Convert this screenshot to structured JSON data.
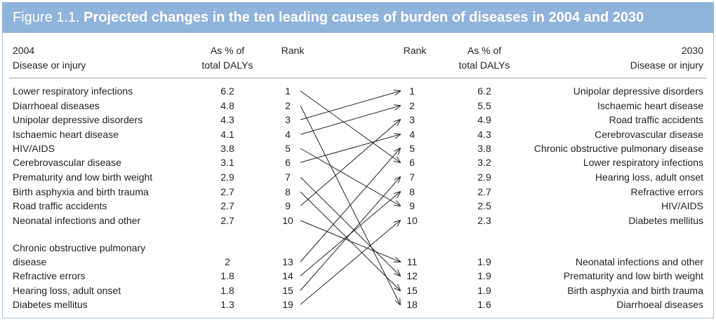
{
  "figure": {
    "label": "Figure 1.1.",
    "title": "Projected changes in the ten leading causes of burden of diseases in 2004 and 2030"
  },
  "headers": {
    "left_year": "2004",
    "left_disease": "Disease or injury",
    "left_pct_line1": "As % of",
    "left_pct_line2": "total DALYs",
    "left_rank": "Rank",
    "right_rank": "Rank",
    "right_pct_line1": "As % of",
    "right_pct_line2": "total DALYs",
    "right_year": "2030",
    "right_disease": "Disease or injury"
  },
  "left_rows": [
    {
      "name": "Lower respiratory infections",
      "pct": "6.2",
      "rank": "1"
    },
    {
      "name": "Diarrhoeal diseases",
      "pct": "4.8",
      "rank": "2"
    },
    {
      "name": "Unipolar depressive disorders",
      "pct": "4.3",
      "rank": "3"
    },
    {
      "name": "Ischaemic heart disease",
      "pct": "4.1",
      "rank": "4"
    },
    {
      "name": "HIV/AIDS",
      "pct": "3.8",
      "rank": "5"
    },
    {
      "name": "Cerebrovascular disease",
      "pct": "3.1",
      "rank": "6"
    },
    {
      "name": "Prematurity and low birth weight",
      "pct": "2.9",
      "rank": "7"
    },
    {
      "name": "Birth asphyxia and birth trauma",
      "pct": "2.7",
      "rank": "8"
    },
    {
      "name": "Road traffic accidents",
      "pct": "2.7",
      "rank": "9"
    },
    {
      "name": "Neonatal infections and other",
      "pct": "2.7",
      "rank": "10"
    }
  ],
  "left_extra_rows": [
    {
      "name_line1": "Chronic obstructive pulmonary",
      "name_line2": "disease",
      "pct": "2",
      "rank": "13"
    },
    {
      "name": "Refractive errors",
      "pct": "1.8",
      "rank": "14"
    },
    {
      "name": "Hearing loss, adult onset",
      "pct": "1.8",
      "rank": "15"
    },
    {
      "name": "Diabetes mellitus",
      "pct": "1.3",
      "rank": "19"
    }
  ],
  "right_rows": [
    {
      "rank": "1",
      "pct": "6.2",
      "name": "Unipolar depressive disorders"
    },
    {
      "rank": "2",
      "pct": "5.5",
      "name": "Ischaemic heart disease"
    },
    {
      "rank": "3",
      "pct": "4.9",
      "name": "Road traffic accidents"
    },
    {
      "rank": "4",
      "pct": "4.3",
      "name": "Cerebrovascular disease"
    },
    {
      "rank": "5",
      "pct": "3.8",
      "name": "Chronic obstructive pulmonary disease"
    },
    {
      "rank": "6",
      "pct": "3.2",
      "name": "Lower respiratory infections"
    },
    {
      "rank": "7",
      "pct": "2.9",
      "name": "Hearing loss, adult onset"
    },
    {
      "rank": "8",
      "pct": "2.7",
      "name": "Refractive errors"
    },
    {
      "rank": "9",
      "pct": "2.5",
      "name": "HIV/AIDS"
    },
    {
      "rank": "10",
      "pct": "2.3",
      "name": "Diabetes mellitus"
    }
  ],
  "right_extra_rows": [
    {
      "rank": "11",
      "pct": "1.9",
      "name": "Neonatal infections and other"
    },
    {
      "rank": "12",
      "pct": "1.9",
      "name": "Prematurity and low birth weight"
    },
    {
      "rank": "15",
      "pct": "1.9",
      "name": "Birth asphyxia and birth trauma"
    },
    {
      "rank": "18",
      "pct": "1.6",
      "name": "Diarrhoeal diseases"
    }
  ],
  "arrow_links": [
    [
      "1",
      "6"
    ],
    [
      "2",
      "18"
    ],
    [
      "3",
      "1"
    ],
    [
      "4",
      "2"
    ],
    [
      "5",
      "9"
    ],
    [
      "6",
      "4"
    ],
    [
      "7",
      "12"
    ],
    [
      "8",
      "15"
    ],
    [
      "9",
      "3"
    ],
    [
      "10",
      "11"
    ],
    [
      "13",
      "5"
    ],
    [
      "14",
      "8"
    ],
    [
      "15",
      "7"
    ],
    [
      "19",
      "10"
    ]
  ],
  "colors": {
    "banner": "#8fb4db",
    "banner_text": "#ffffff",
    "text": "#222222",
    "arrow": "#222222"
  }
}
